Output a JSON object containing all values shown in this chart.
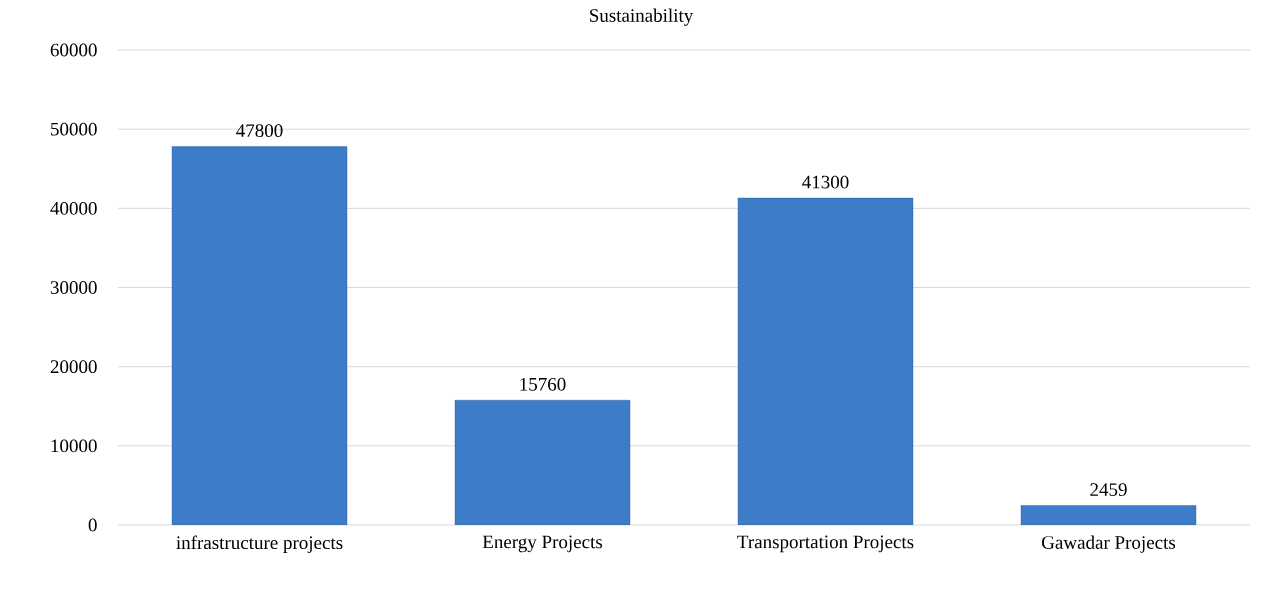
{
  "chart_data": {
    "type": "bar",
    "title": "Sustainability",
    "categories": [
      "infrastructure projects",
      "Energy Projects",
      "Transportation Projects",
      "Gawadar Projects"
    ],
    "values": [
      47800,
      15760,
      41300,
      2459
    ],
    "color": "#3d7cc9",
    "ylim": [
      0,
      60000
    ],
    "yticks": [
      0,
      10000,
      20000,
      30000,
      40000,
      50000,
      60000
    ],
    "grid": "y",
    "data_labels": true
  }
}
